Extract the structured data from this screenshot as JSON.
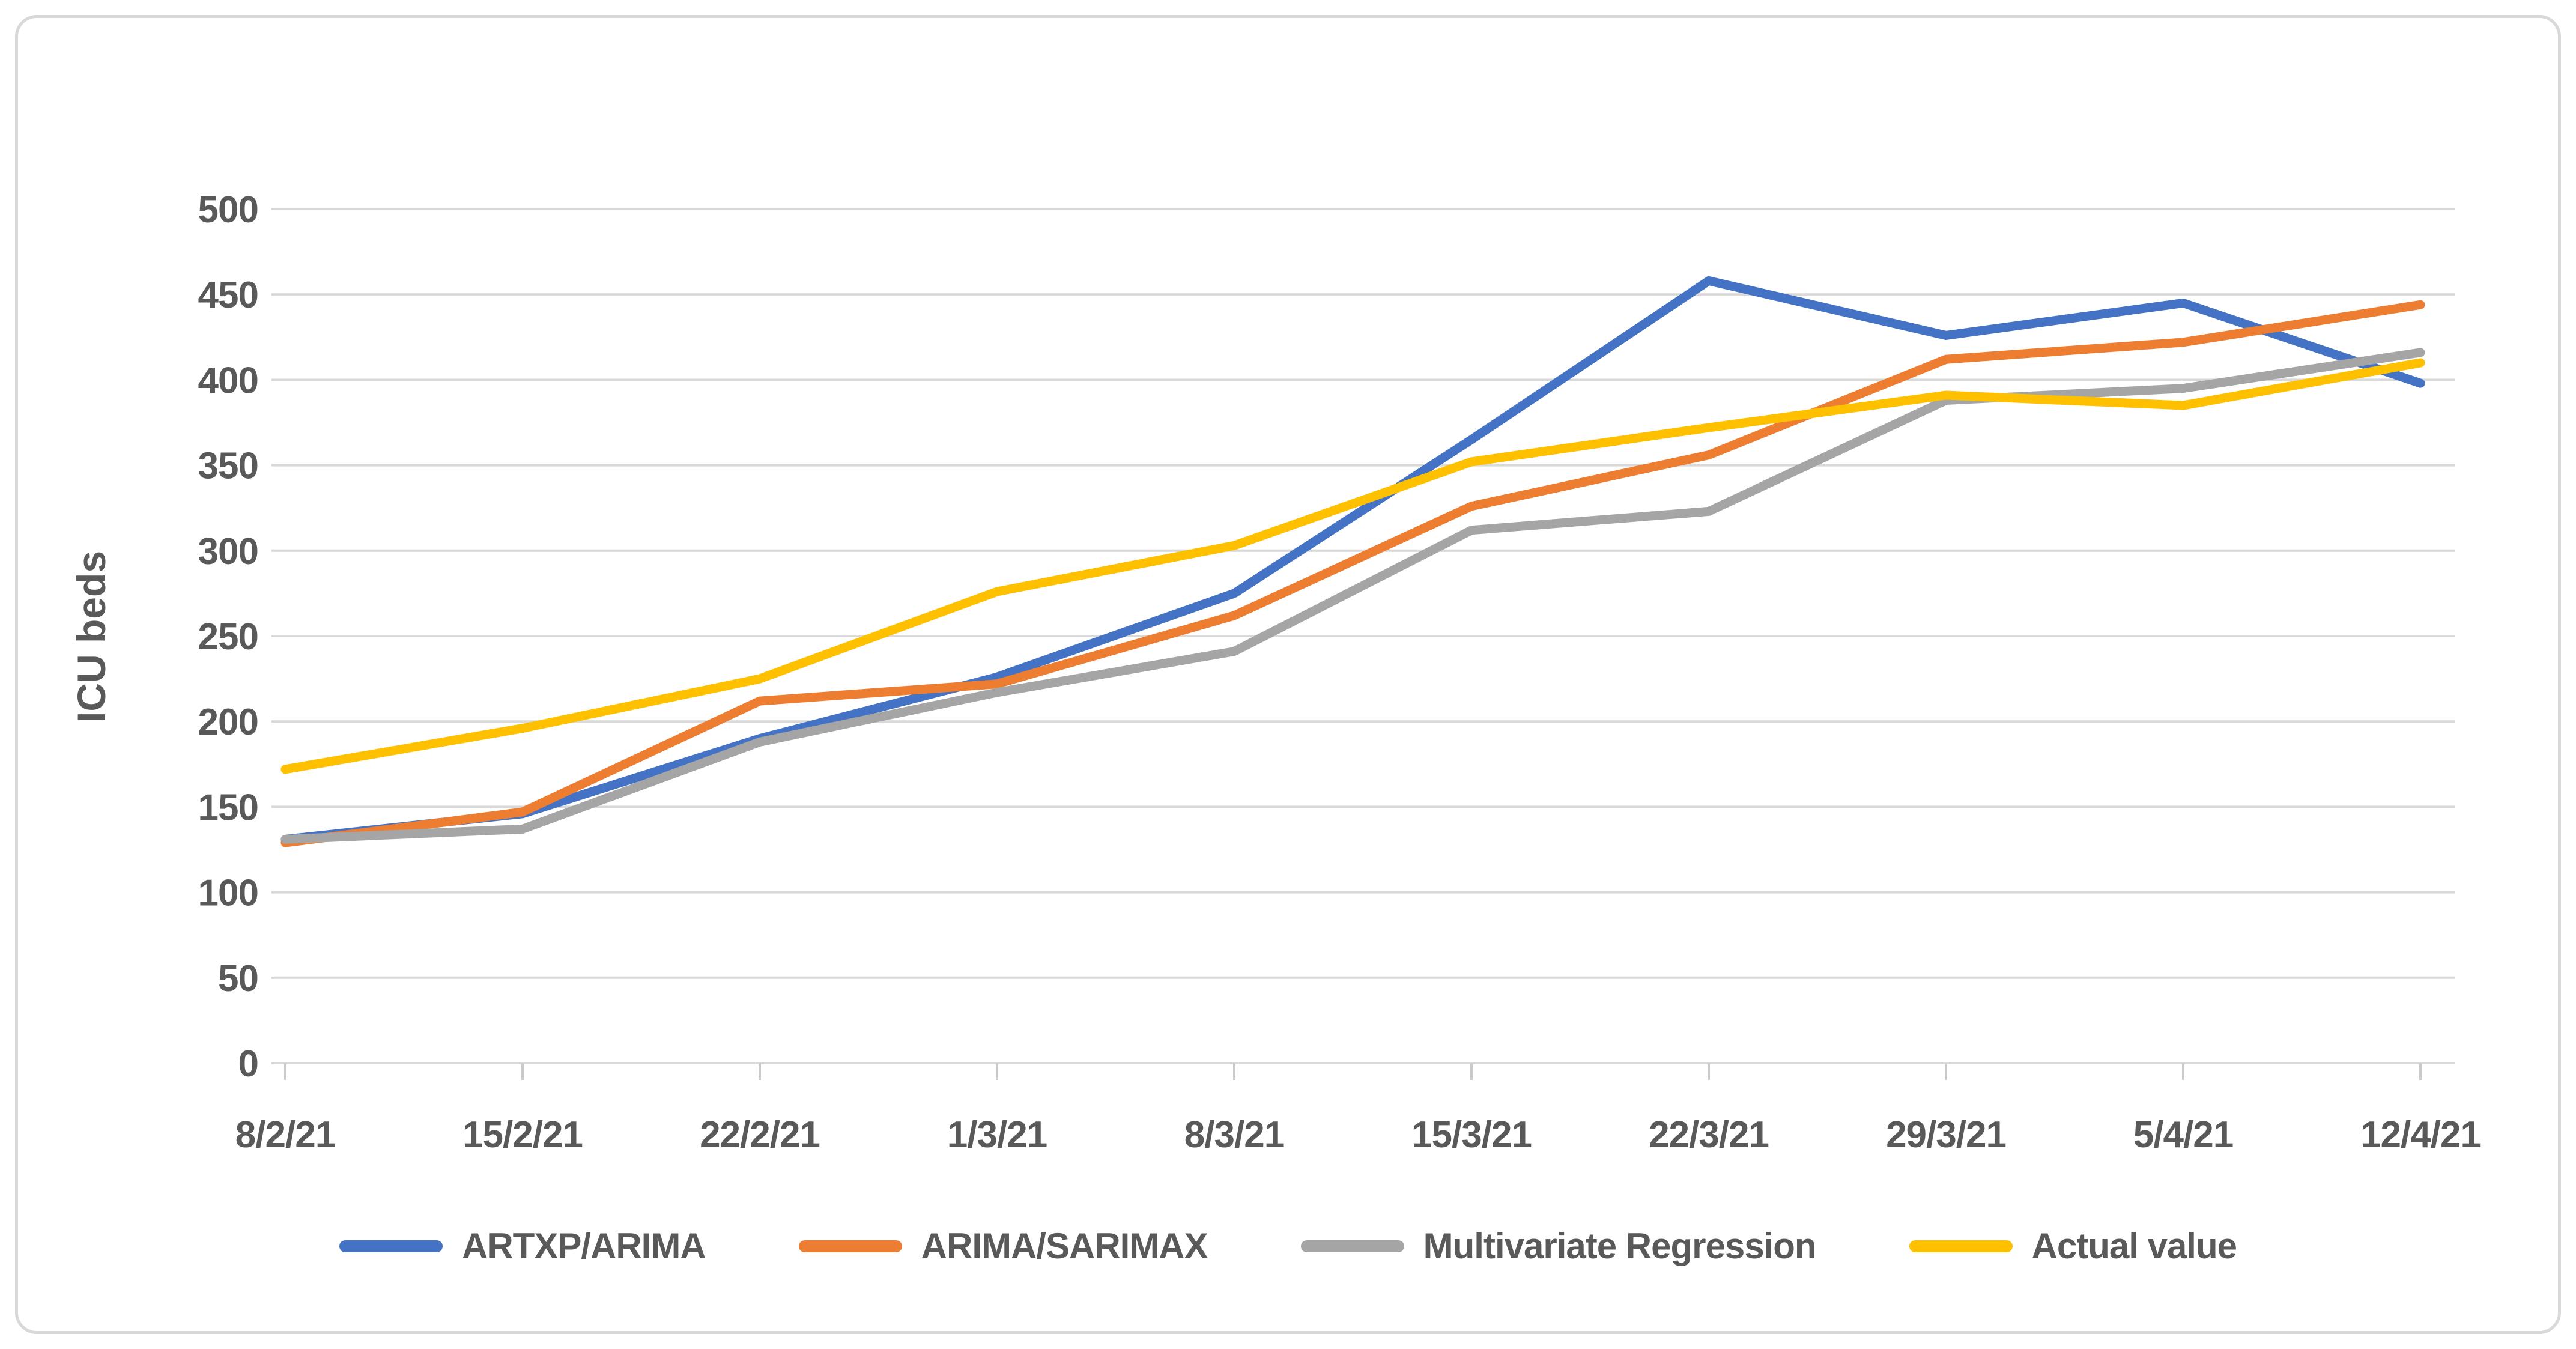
{
  "figure": {
    "background": "#FFFFFF",
    "frame_border_color": "#D9D9D9"
  },
  "colors": {
    "text": "#595959",
    "gridline": "#D9D9D9",
    "tick": "#C9C9C9"
  },
  "chart_data": {
    "type": "line",
    "title": "",
    "xlabel": "",
    "ylabel": "ICU beds",
    "ylim": [
      0,
      500
    ],
    "ytick_step": 50,
    "grid": "horizontal",
    "legend_position": "bottom",
    "categories": [
      "8/2/21",
      "15/2/21",
      "22/2/21",
      "1/3/21",
      "8/3/21",
      "15/3/21",
      "22/3/21",
      "29/3/21",
      "5/4/21",
      "12/4/21"
    ],
    "series": [
      {
        "name": "ARTXP/ARIMA",
        "color": "#4472C4",
        "values": [
          131,
          146,
          190,
          226,
          275,
          365,
          458,
          426,
          445,
          398
        ]
      },
      {
        "name": "ARIMA/SARIMAX",
        "color": "#ED7D31",
        "values": [
          129,
          147,
          212,
          222,
          262,
          326,
          356,
          412,
          422,
          444
        ]
      },
      {
        "name": "Multivariate Regression",
        "color": "#A5A5A5",
        "values": [
          131,
          137,
          188,
          217,
          241,
          312,
          323,
          388,
          395,
          416
        ]
      },
      {
        "name": "Actual value",
        "color": "#FFC000",
        "values": [
          172,
          196,
          225,
          276,
          303,
          352,
          372,
          391,
          385,
          410
        ]
      }
    ]
  }
}
